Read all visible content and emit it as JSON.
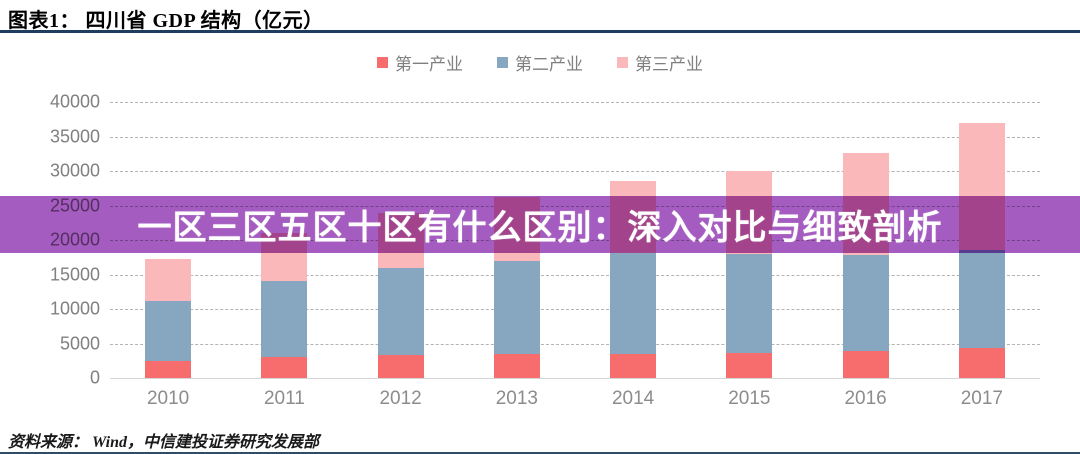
{
  "header": {
    "title": "图表1：  四川省 GDP 结构（亿元）"
  },
  "overlay": {
    "text": "一区三区五区十区有什么区别：深入对比与细致剖析",
    "background": "#a55cc0",
    "text_color": "#ffffff"
  },
  "footer": {
    "source": "资料来源：  Wind，中信建投证券研究发展部"
  },
  "colors": {
    "header_rule": "#1f3c61",
    "axis_text": "#808080",
    "legend_text": "#7f7f7f",
    "gridline": "#b3b3b3"
  },
  "chart_data": {
    "type": "bar",
    "stacked": true,
    "title": "四川省 GDP 结构（亿元）",
    "categories": [
      "2010",
      "2011",
      "2012",
      "2013",
      "2014",
      "2015",
      "2016",
      "2017"
    ],
    "series": [
      {
        "name": "第一产业",
        "color": "#f76c6c",
        "values": [
          2483,
          2984,
          3297,
          3426,
          3531,
          3677,
          3924,
          4283
        ]
      },
      {
        "name": "第二产业",
        "color": "#87a6bf",
        "values": [
          8672,
          11029,
          12587,
          13579,
          14519,
          14294,
          13925,
          14294
        ]
      },
      {
        "name": "第三产业",
        "color": "#fab8ba",
        "values": [
          6030,
          7014,
          7989,
          9256,
          10487,
          12082,
          14832,
          18403
        ]
      }
    ],
    "totals": [
      17185,
      21027,
      23873,
      26261,
      28537,
      30053,
      32681,
      36980
    ],
    "xlabel": "",
    "ylabel": "",
    "ylim": [
      0,
      40000
    ],
    "yticks": [
      0,
      5000,
      10000,
      15000,
      20000,
      25000,
      30000,
      35000,
      40000
    ],
    "grid": "horizontal-dashed",
    "legend_position": "top-center"
  }
}
